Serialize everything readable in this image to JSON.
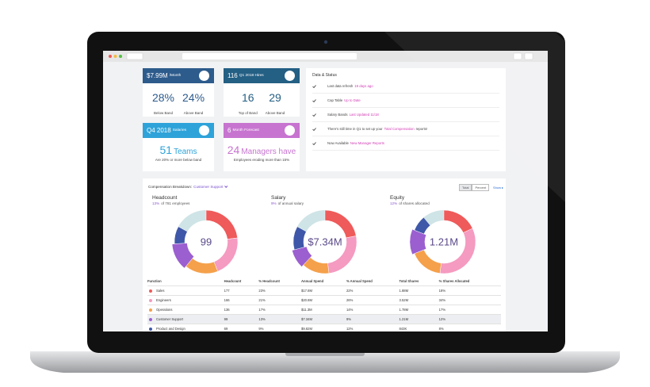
{
  "cards": [
    {
      "value": "$7.99M",
      "label": "/Month",
      "color": "#2d5b8c",
      "stats": [
        {
          "value": "28%",
          "label": "Below Band"
        },
        {
          "value": "24%",
          "label": "Above Band"
        }
      ]
    },
    {
      "value": "116",
      "label": "Q1 2018 Hires",
      "color": "#245f84",
      "stats": [
        {
          "value": "16",
          "label": "Top of Band"
        },
        {
          "value": "29",
          "label": "Above Band"
        }
      ]
    },
    {
      "value": "Q4 2018",
      "label": "Salaries",
      "color": "#2ea3d9",
      "stats": [
        {
          "value": "51",
          "label": "Teams"
        }
      ],
      "note": "Are 20% or more below band"
    },
    {
      "value": "6",
      "label": "Month Forecast",
      "color": "#c774d0",
      "stats": [
        {
          "value": "24",
          "label": "Managers have"
        }
      ],
      "note": "Employees eroding more than 15%"
    }
  ],
  "status": {
    "title": "Data & Status",
    "items": [
      {
        "text": "Last data refresh",
        "link": "19 days ago"
      },
      {
        "text": "Cap Table",
        "link": "Up to Date"
      },
      {
        "text": "Salary Bands",
        "link": "Last Updated 11/18"
      },
      {
        "text": "There's still time in Q1 to set up your",
        "link": "Total Compensation",
        "after": "reports!"
      },
      {
        "text": "Now Available",
        "link": "New Manager Reports"
      }
    ]
  },
  "breakdown": {
    "title": "Compensation Breakdown:",
    "selected": "Customer Support",
    "toggle": [
      "Total",
      "Percent"
    ],
    "show": "Show",
    "charts": [
      {
        "title": "Headcount",
        "pct": "13%",
        "caption": "of 781 employees",
        "center": "99"
      },
      {
        "title": "Salary",
        "pct": "9%",
        "caption": "of annual salary",
        "center": "$7.34M"
      },
      {
        "title": "Equity",
        "pct": "12%",
        "caption": "of shares allocated",
        "center": "1.21M"
      }
    ]
  },
  "table": {
    "columns": [
      "Function",
      "Headcount",
      "% Headcount",
      "Annual Spend",
      "% Annual Spend",
      "Total Shares",
      "% Shares Allocated"
    ],
    "colors": [
      "#ef5a5a",
      "#f59ac0",
      "#f5a04a",
      "#9b5fd0",
      "#3f57a8"
    ],
    "rows": [
      [
        "Sales",
        "177",
        "23%",
        "$17.8M",
        "22%",
        "1.88M",
        "18%"
      ],
      [
        "Engineers",
        "166",
        "21%",
        "$20.8M",
        "26%",
        "3.52M",
        "34%"
      ],
      [
        "Operations",
        "136",
        "17%",
        "$11.3M",
        "14%",
        "1.78M",
        "17%"
      ],
      [
        "Customer Support",
        "99",
        "13%",
        "$7.34M",
        "9%",
        "1.21M",
        "12%"
      ],
      [
        "Product and Design",
        "69",
        "9%",
        "$9.82M",
        "12%",
        "843K",
        "8%"
      ]
    ]
  }
}
